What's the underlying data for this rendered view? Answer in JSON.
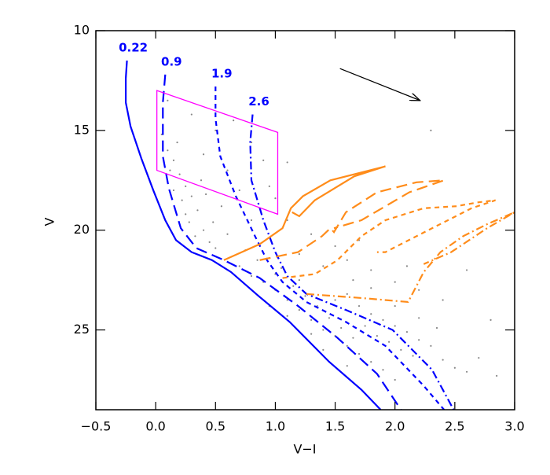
{
  "chart_data": {
    "type": "scatter",
    "xlabel": "V−I",
    "ylabel": "V",
    "xlim": [
      -0.5,
      3.0
    ],
    "ylim": [
      29,
      10
    ],
    "xticks": [
      {
        "value": -0.5,
        "label": "−0.5"
      },
      {
        "value": 0,
        "label": "0.0"
      },
      {
        "value": 0.5,
        "label": "0.5"
      },
      {
        "value": 1,
        "label": "1.0"
      },
      {
        "value": 1.5,
        "label": "1.5"
      },
      {
        "value": 2,
        "label": "2.0"
      },
      {
        "value": 2.5,
        "label": "2.5"
      },
      {
        "value": 3,
        "label": "3.0"
      }
    ],
    "yticks": [
      10,
      15,
      20,
      25
    ],
    "scatter": {
      "color": "#888888",
      "x": [
        0.05,
        0.1,
        0.15,
        0.2,
        0.25,
        0.3,
        0.12,
        0.22,
        0.35,
        0.28,
        0.4,
        0.33,
        0.45,
        0.5,
        0.18,
        0.4,
        0.6,
        0.7,
        0.55,
        0.8,
        0.3,
        0.5,
        0.65,
        0.9,
        0.38,
        0.25,
        0.15,
        0.42,
        0.48,
        0.6,
        0.7,
        0.8,
        0.9,
        1.0,
        1.1,
        1.2,
        1.3,
        1.4,
        1.5,
        1.6,
        1.7,
        1.8,
        1.9,
        1.0,
        1.15,
        1.25,
        1.35,
        1.45,
        1.55,
        1.65,
        1.1,
        1.3,
        0.95,
        1.4,
        1.6,
        2.0,
        0.75,
        0.85,
        1.05,
        1.2,
        1.6,
        1.7,
        1.8,
        1.9,
        2.0,
        2.1,
        2.2,
        2.3,
        1.75,
        1.85,
        1.95,
        2.05,
        2.15,
        2.4,
        2.5,
        2.6,
        1.65,
        1.8,
        2.2,
        2.35,
        1.5,
        2.7,
        2.85,
        2.0,
        1.1,
        1.3,
        1.5,
        1.2,
        1.4,
        1.6,
        1.8,
        2.0,
        2.2,
        1.0,
        0.95,
        2.6,
        2.4,
        2.8,
        1.7,
        2.1,
        0.8,
        1.1,
        2.3,
        0.1
      ],
      "y": [
        15.2,
        16.0,
        16.5,
        17.2,
        17.8,
        18.3,
        17.0,
        18.5,
        19.0,
        19.6,
        20.0,
        20.3,
        20.6,
        20.9,
        15.6,
        16.2,
        17.0,
        18.0,
        18.8,
        19.5,
        14.2,
        15.0,
        14.5,
        16.5,
        17.5,
        19.2,
        18.0,
        18.2,
        19.6,
        20.2,
        21.8,
        22.3,
        22.6,
        23.0,
        23.5,
        24.0,
        24.5,
        25.0,
        25.3,
        25.8,
        26.2,
        26.6,
        27.0,
        22.2,
        22.8,
        23.3,
        23.8,
        24.4,
        24.9,
        25.4,
        24.3,
        25.2,
        23.8,
        26.0,
        26.8,
        27.5,
        21.0,
        21.5,
        21.9,
        22.5,
        23.2,
        23.8,
        24.2,
        24.5,
        24.8,
        25.1,
        25.5,
        25.8,
        24.8,
        25.3,
        25.6,
        26.0,
        26.3,
        26.5,
        26.9,
        27.1,
        22.5,
        22.9,
        24.4,
        24.9,
        23.5,
        26.4,
        27.3,
        23.8,
        19.5,
        20.2,
        20.8,
        21.2,
        21.8,
        21.5,
        22.0,
        22.6,
        23.0,
        18.4,
        17.8,
        22.0,
        23.5,
        24.5,
        20.5,
        21.8,
        15.6,
        16.6,
        15.0,
        13.5
      ]
    },
    "series": [
      {
        "name": "0.22",
        "color": "#0000ff",
        "dash": "solid",
        "x": [
          -0.24,
          -0.25,
          -0.25,
          -0.21,
          -0.12,
          -0.02,
          0.08,
          0.17,
          0.3,
          0.47,
          0.63,
          0.86,
          1.12,
          1.45,
          1.72,
          1.88
        ],
        "y": [
          11.5,
          12.4,
          13.6,
          14.8,
          16.4,
          18.0,
          19.5,
          20.5,
          21.1,
          21.5,
          22.1,
          23.3,
          24.6,
          26.6,
          28.0,
          29.0
        ]
      },
      {
        "name": "0.9",
        "color": "#0000ff",
        "dash": "dashed",
        "x": [
          0.08,
          0.06,
          0.06,
          0.11,
          0.21,
          0.34,
          0.57,
          0.87,
          1.19,
          1.52,
          1.85,
          2.05
        ],
        "y": [
          12.2,
          13.6,
          16.3,
          17.9,
          19.9,
          20.9,
          21.5,
          22.4,
          23.8,
          25.4,
          27.2,
          29.0
        ]
      },
      {
        "name": "1.9",
        "color": "#0000ff",
        "dash": "short-dashed",
        "x": [
          0.5,
          0.5,
          0.54,
          0.67,
          0.83,
          0.93,
          1.06,
          1.26,
          1.59,
          1.92,
          2.24,
          2.41
        ],
        "y": [
          12.8,
          14.4,
          16.3,
          18.3,
          20.3,
          21.5,
          22.6,
          23.6,
          24.6,
          25.8,
          27.8,
          29.0
        ]
      },
      {
        "name": "2.6",
        "color": "#0000ff",
        "dash": "dash-dot",
        "x": [
          0.81,
          0.79,
          0.8,
          0.9,
          1.0,
          1.1,
          1.26,
          1.59,
          1.98,
          2.31,
          2.49
        ],
        "y": [
          14.2,
          15.6,
          17.5,
          19.5,
          21.1,
          22.3,
          23.2,
          24.0,
          25.0,
          27.0,
          29.0
        ]
      },
      {
        "color": "#ff8c1a",
        "dash": "solid",
        "x": [
          0.57,
          0.87,
          1.06,
          1.13,
          1.23,
          1.46,
          1.92,
          1.66,
          1.33,
          1.2,
          1.14
        ],
        "y": [
          21.5,
          20.7,
          19.9,
          18.9,
          18.3,
          17.5,
          16.8,
          17.3,
          18.5,
          19.3,
          19.1
        ]
      },
      {
        "color": "#ff8c1a",
        "dash": "dashed",
        "x": [
          0.87,
          1.19,
          1.39,
          1.46,
          1.49,
          1.59,
          1.85,
          2.18,
          2.41,
          2.12,
          1.72,
          1.49
        ],
        "y": [
          21.5,
          21.1,
          20.3,
          19.9,
          20.1,
          19.1,
          18.1,
          17.6,
          17.5,
          18.1,
          19.5,
          19.9
        ]
      },
      {
        "color": "#ff8c1a",
        "dash": "short-dashed",
        "x": [
          1.06,
          1.33,
          1.52,
          1.72,
          1.92,
          2.24,
          2.51,
          2.7,
          2.84,
          2.64,
          2.18,
          1.92,
          1.85
        ],
        "y": [
          22.4,
          22.2,
          21.5,
          20.3,
          19.5,
          18.9,
          18.8,
          18.6,
          18.5,
          18.9,
          20.3,
          21.1,
          21.1
        ]
      },
      {
        "color": "#ff8c1a",
        "dash": "dash-dot",
        "x": [
          1.26,
          1.72,
          2.11,
          2.24,
          2.38,
          2.57,
          2.77,
          3.0,
          2.77,
          2.47,
          2.24
        ],
        "y": [
          23.2,
          23.4,
          23.6,
          22.1,
          21.1,
          20.3,
          19.7,
          19.1,
          19.9,
          21.1,
          21.7
        ]
      }
    ],
    "box": {
      "color": "#ff00ff",
      "x": [
        0.01,
        1.02,
        1.02,
        0.01
      ],
      "y": [
        13.0,
        15.1,
        19.2,
        17.0
      ]
    },
    "arrow": {
      "color": "#000000",
      "x": [
        1.54,
        2.21
      ],
      "y": [
        11.9,
        13.5
      ]
    }
  }
}
